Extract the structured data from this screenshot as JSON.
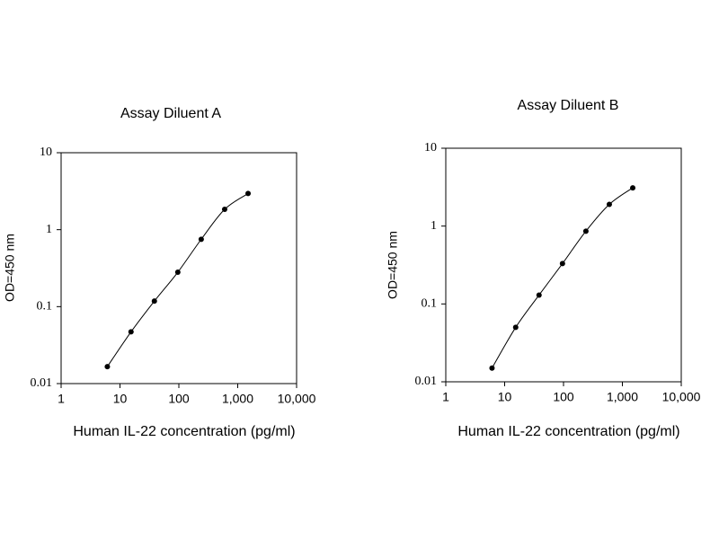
{
  "chart_data": [
    {
      "type": "line",
      "title": "Assay Diluent A",
      "x_label": "Human IL-22 concentration (pg/ml)",
      "y_label": "OD=450 nm",
      "x": [
        6.1,
        15.4,
        38.4,
        96,
        240,
        600,
        1500
      ],
      "values": [
        0.0166,
        0.047,
        0.118,
        0.28,
        0.75,
        1.84,
        2.95
      ],
      "color": "#000000",
      "log_x": true,
      "log_y": true,
      "xlim": [
        1,
        10000
      ],
      "ylim": [
        0.01,
        10
      ],
      "xticks": [
        1,
        10,
        100,
        {
          "value": 1000,
          "label": "1,000"
        },
        {
          "value": 10000,
          "label": "10,000"
        }
      ],
      "yticks": [
        0.01,
        0.1,
        1,
        10
      ]
    },
    {
      "type": "line",
      "title": "Assay Diluent B",
      "x_label": "Human IL-22 concentration (pg/ml)",
      "y_label": "OD=450 nm",
      "x": [
        6.1,
        15.4,
        38.4,
        96,
        240,
        600,
        1500
      ],
      "values": [
        0.015,
        0.05,
        0.13,
        0.33,
        0.86,
        1.9,
        3.1
      ],
      "color": "#000000",
      "log_x": true,
      "log_y": true,
      "xlim": [
        1,
        10000
      ],
      "ylim": [
        0.01,
        10
      ],
      "xticks": [
        1,
        10,
        100,
        {
          "value": 1000,
          "label": "1,000"
        },
        {
          "value": 10000,
          "label": "10,000"
        }
      ],
      "yticks": [
        0.01,
        0.1,
        1,
        10
      ]
    }
  ]
}
